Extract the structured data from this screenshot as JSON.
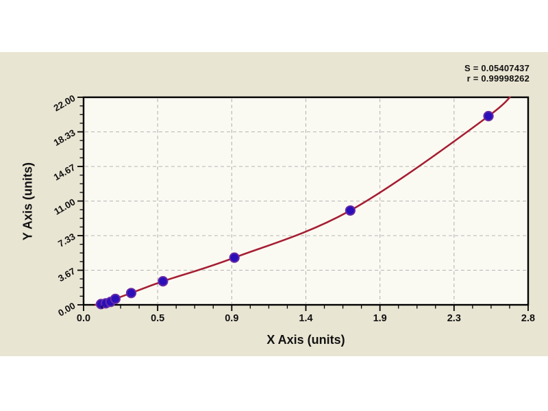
{
  "stats": {
    "s": "S = 0.05407437",
    "r": "r = 0.99998262"
  },
  "chart_data": {
    "type": "scatter",
    "title": "",
    "xlabel": "X Axis (units)",
    "ylabel": "Y Axis (units)",
    "xlim": [
      0,
      2.8
    ],
    "ylim": [
      0,
      22
    ],
    "x_tick_labels": [
      "0.0",
      "0.5",
      "0.9",
      "1.4",
      "1.9",
      "2.3",
      "2.8"
    ],
    "y_tick_labels": [
      "0.00",
      "3.67",
      "7.33",
      "11.00",
      "14.67",
      "18.33",
      "22.00"
    ],
    "minor_divisions_per_major": 4,
    "grid": "dashed gray gridlines at major ticks",
    "legend": "none",
    "points": [
      {
        "x": 0.11,
        "y": 0.08
      },
      {
        "x": 0.14,
        "y": 0.16
      },
      {
        "x": 0.17,
        "y": 0.31
      },
      {
        "x": 0.2,
        "y": 0.63
      },
      {
        "x": 0.3,
        "y": 1.25
      },
      {
        "x": 0.5,
        "y": 2.5
      },
      {
        "x": 0.95,
        "y": 5.0
      },
      {
        "x": 1.68,
        "y": 10.0
      },
      {
        "x": 2.55,
        "y": 20.0
      }
    ],
    "fit_curve": {
      "start": {
        "x": 0.07,
        "y": 0.0
      },
      "end": {
        "x": 2.72,
        "y": 23.0
      },
      "note": "smooth regression curve through points, clipped at top of plot (y=22)"
    },
    "colors": {
      "panel_bg": "#e9e5d3",
      "plot_bg": "#fbfaf2",
      "curve": "#a51e33",
      "point_fill": "#2b0fb8",
      "point_stroke": "#652ba8",
      "grid": "#b4b4b4",
      "axis": "#000000",
      "text": "#111111"
    }
  }
}
